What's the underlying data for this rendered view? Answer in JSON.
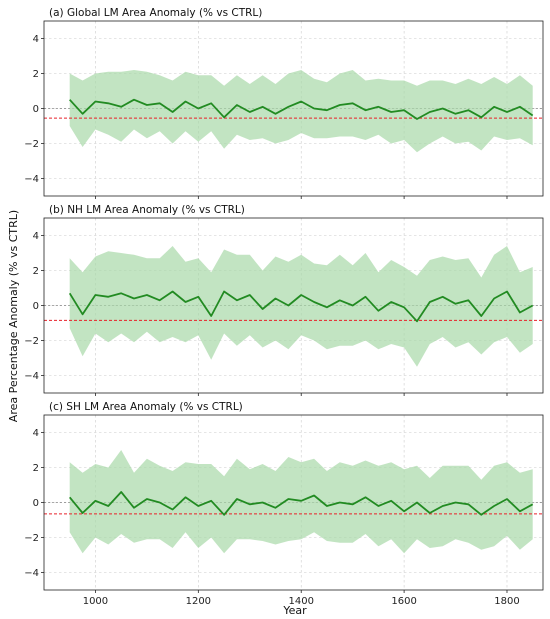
{
  "chart_data": {
    "type": "line",
    "ylabel": "Area Percentage Anomaly (% vs CTRL)",
    "xlabel": "Year",
    "xlim": [
      900,
      1870
    ],
    "x_ticks": [
      1000,
      1200,
      1400,
      1600,
      1800
    ],
    "y_ticks": [
      -4,
      -2,
      0,
      2,
      4
    ],
    "grid": true,
    "colors": {
      "mean": "#228b22",
      "band": "#a8d8a8",
      "threshold": "#e8202a"
    },
    "panels": [
      {
        "title": "(a) Global LM Area Anomaly (% vs CTRL)",
        "ylim": [
          -5,
          5
        ],
        "threshold": -0.55,
        "series": {
          "x": [
            950,
            975,
            1000,
            1025,
            1050,
            1075,
            1100,
            1125,
            1150,
            1175,
            1200,
            1225,
            1250,
            1275,
            1300,
            1325,
            1350,
            1375,
            1400,
            1425,
            1450,
            1475,
            1500,
            1525,
            1550,
            1575,
            1600,
            1625,
            1650,
            1675,
            1700,
            1725,
            1750,
            1775,
            1800,
            1825,
            1850
          ],
          "mean": [
            0.5,
            -0.3,
            0.4,
            0.3,
            0.1,
            0.5,
            0.2,
            0.3,
            -0.2,
            0.4,
            0.0,
            0.3,
            -0.5,
            0.2,
            -0.2,
            0.1,
            -0.3,
            0.1,
            0.4,
            0.0,
            -0.1,
            0.2,
            0.3,
            -0.1,
            0.1,
            -0.2,
            -0.1,
            -0.6,
            -0.2,
            0.0,
            -0.3,
            -0.1,
            -0.5,
            0.1,
            -0.2,
            0.1,
            -0.4
          ],
          "band_halfwidth": [
            1.5,
            1.9,
            1.6,
            1.8,
            2.0,
            1.7,
            1.9,
            1.6,
            1.8,
            1.7,
            1.9,
            1.6,
            1.8,
            1.7,
            1.6,
            1.8,
            1.7,
            1.9,
            1.8,
            1.7,
            1.6,
            1.8,
            1.9,
            1.7,
            1.6,
            1.8,
            1.7,
            1.9,
            1.8,
            1.6,
            1.7,
            1.8,
            1.9,
            1.7,
            1.6,
            1.8,
            1.7
          ]
        }
      },
      {
        "title": "(b) NH LM Area Anomaly (% vs CTRL)",
        "ylim": [
          -5,
          5
        ],
        "threshold": -0.85,
        "series": {
          "x": [
            950,
            975,
            1000,
            1025,
            1050,
            1075,
            1100,
            1125,
            1150,
            1175,
            1200,
            1225,
            1250,
            1275,
            1300,
            1325,
            1350,
            1375,
            1400,
            1425,
            1450,
            1475,
            1500,
            1525,
            1550,
            1575,
            1600,
            1625,
            1650,
            1675,
            1700,
            1725,
            1750,
            1775,
            1800,
            1825,
            1850
          ],
          "mean": [
            0.7,
            -0.5,
            0.6,
            0.5,
            0.7,
            0.4,
            0.6,
            0.3,
            0.8,
            0.2,
            0.5,
            -0.6,
            0.8,
            0.3,
            0.6,
            -0.2,
            0.4,
            0.0,
            0.6,
            0.2,
            -0.1,
            0.3,
            0.0,
            0.5,
            -0.3,
            0.2,
            -0.1,
            -0.9,
            0.2,
            0.5,
            0.1,
            0.3,
            -0.6,
            0.4,
            0.8,
            -0.4,
            0.0
          ],
          "band_halfwidth": [
            2.0,
            2.4,
            2.2,
            2.6,
            2.3,
            2.5,
            2.1,
            2.4,
            2.6,
            2.3,
            2.2,
            2.5,
            2.4,
            2.6,
            2.3,
            2.2,
            2.4,
            2.5,
            2.3,
            2.2,
            2.4,
            2.6,
            2.3,
            2.5,
            2.2,
            2.4,
            2.3,
            2.6,
            2.4,
            2.3,
            2.5,
            2.4,
            2.2,
            2.5,
            2.6,
            2.3,
            2.2
          ]
        }
      },
      {
        "title": "(c) SH LM Area Anomaly (% vs CTRL)",
        "ylim": [
          -5,
          5
        ],
        "threshold": -0.65,
        "series": {
          "x": [
            950,
            975,
            1000,
            1025,
            1050,
            1075,
            1100,
            1125,
            1150,
            1175,
            1200,
            1225,
            1250,
            1275,
            1300,
            1325,
            1350,
            1375,
            1400,
            1425,
            1450,
            1475,
            1500,
            1525,
            1550,
            1575,
            1600,
            1625,
            1650,
            1675,
            1700,
            1725,
            1750,
            1775,
            1800,
            1825,
            1850
          ],
          "mean": [
            0.3,
            -0.6,
            0.1,
            -0.2,
            0.6,
            -0.3,
            0.2,
            0.0,
            -0.4,
            0.3,
            -0.2,
            0.1,
            -0.7,
            0.2,
            -0.1,
            0.0,
            -0.3,
            0.2,
            0.1,
            0.4,
            -0.2,
            0.0,
            -0.1,
            0.3,
            -0.2,
            0.1,
            -0.5,
            0.0,
            -0.6,
            -0.2,
            0.0,
            -0.1,
            -0.7,
            -0.2,
            0.2,
            -0.5,
            -0.1
          ],
          "band_halfwidth": [
            2.0,
            2.3,
            2.1,
            2.2,
            2.4,
            2.0,
            2.3,
            2.1,
            2.2,
            2.0,
            2.4,
            2.1,
            2.2,
            2.3,
            2.0,
            2.2,
            2.1,
            2.4,
            2.2,
            2.1,
            2.0,
            2.3,
            2.2,
            2.1,
            2.3,
            2.2,
            2.4,
            2.1,
            2.0,
            2.3,
            2.1,
            2.2,
            2.0,
            2.3,
            2.1,
            2.2,
            2.0
          ]
        }
      }
    ]
  }
}
